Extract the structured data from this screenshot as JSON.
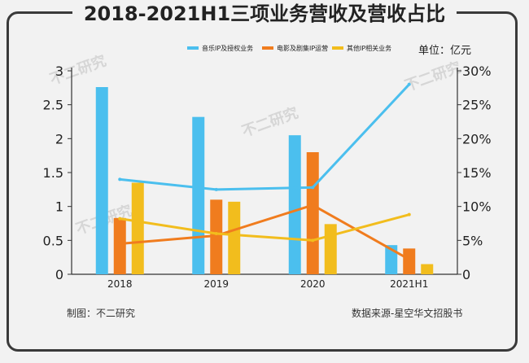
{
  "chart_data": {
    "type": "bar+line",
    "title": "2018-2021H1三项业务营收及营收占比",
    "unit_label": "单位：亿元",
    "categories": [
      "2018",
      "2019",
      "2020",
      "2021H1"
    ],
    "y_left": {
      "ylim": [
        0,
        3
      ],
      "ticks": [
        "0",
        "0.5",
        "1",
        "1.5",
        "2",
        "2.5",
        "3"
      ]
    },
    "y_right": {
      "ylim": [
        0,
        30
      ],
      "ticks": [
        "0",
        "5%",
        "10%",
        "15%",
        "20%",
        "25%",
        "30%"
      ]
    },
    "bar_series": [
      {
        "name": "音乐IP及授权业务",
        "color": "#4bbfee",
        "values": [
          2.76,
          2.32,
          2.05,
          0.43
        ]
      },
      {
        "name": "电影及剧集IP运营",
        "color": "#f07c1e",
        "values": [
          0.83,
          1.1,
          1.8,
          0.38
        ]
      },
      {
        "name": "其他IP相关业务",
        "color": "#f2bd1d",
        "values": [
          1.35,
          1.07,
          0.74,
          0.15
        ]
      }
    ],
    "line_series": [
      {
        "color": "#4bbfee",
        "values": [
          14.0,
          12.5,
          12.8,
          28.0
        ]
      },
      {
        "color": "#f07c1e",
        "values": [
          4.5,
          5.7,
          10.2,
          2.2
        ]
      },
      {
        "color": "#f2bd1d",
        "values": [
          8.2,
          6.0,
          5.0,
          8.8
        ]
      }
    ]
  },
  "footer": {
    "source_left": "制图：不二研究",
    "source_right": "数据来源-星空华文招股书"
  },
  "watermark": "不二研究"
}
